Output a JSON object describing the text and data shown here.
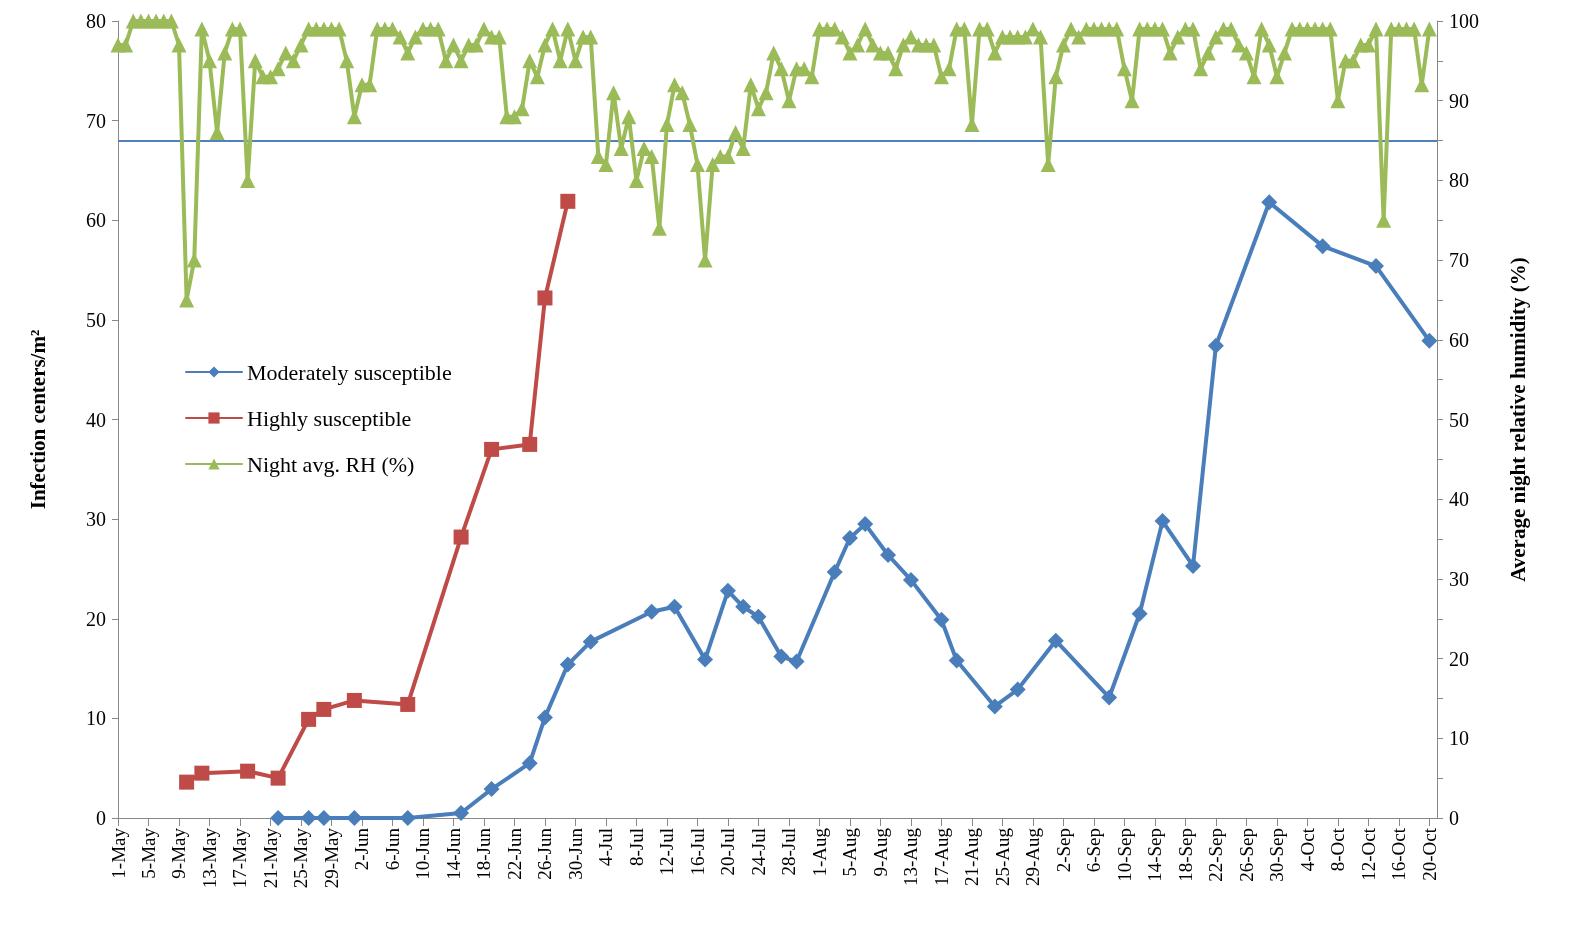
{
  "chart_data": {
    "type": "line",
    "xlabel": null,
    "ylabel": "Infection centers/m²",
    "y2label": "Average night relative humidity (%)",
    "x": [
      "--05-01",
      "--05-02",
      "--05-03",
      "--05-04",
      "--05-05",
      "--05-06",
      "--05-07",
      "--05-08",
      "--05-09",
      "--05-10",
      "--05-11",
      "--05-12",
      "--05-13",
      "--05-14",
      "--05-15",
      "--05-16",
      "--05-17",
      "--05-18",
      "--05-19",
      "--05-20",
      "--05-21",
      "--05-22",
      "--05-23",
      "--05-24",
      "--05-25",
      "--05-26",
      "--05-27",
      "--05-28",
      "--05-29",
      "--05-30",
      "--05-31",
      "--06-01",
      "--06-02",
      "--06-03",
      "--06-04",
      "--06-05",
      "--06-06",
      "--06-07",
      "--06-08",
      "--06-09",
      "--06-10",
      "--06-11",
      "--06-12",
      "--06-13",
      "--06-14",
      "--06-15",
      "--06-16",
      "--06-17",
      "--06-18",
      "--06-19",
      "--06-20",
      "--06-21",
      "--06-22",
      "--06-23",
      "--06-24",
      "--06-25",
      "--06-26",
      "--06-27",
      "--06-28",
      "--06-29",
      "--06-30",
      "--07-01",
      "--07-02",
      "--07-03",
      "--07-04",
      "--07-05",
      "--07-06",
      "--07-07",
      "--07-08",
      "--07-09",
      "--07-10",
      "--07-11",
      "--07-12",
      "--07-13",
      "--07-14",
      "--07-15",
      "--07-16",
      "--07-17",
      "--07-18",
      "--07-19",
      "--07-20",
      "--07-21",
      "--07-22",
      "--07-23",
      "--07-24",
      "--07-25",
      "--07-26",
      "--07-27",
      "--07-28",
      "--07-29",
      "--07-30",
      "--07-31",
      "--08-01",
      "--08-02",
      "--08-03",
      "--08-04",
      "--08-05",
      "--08-06",
      "--08-07",
      "--08-08",
      "--08-09",
      "--08-10",
      "--08-11",
      "--08-12",
      "--08-13",
      "--08-14",
      "--08-15",
      "--08-16",
      "--08-17",
      "--08-18",
      "--08-19",
      "--08-20",
      "--08-21",
      "--08-22",
      "--08-23",
      "--08-24",
      "--08-25",
      "--08-26",
      "--08-27",
      "--08-28",
      "--08-29",
      "--08-30",
      "--08-31",
      "--09-01",
      "--09-02",
      "--09-03",
      "--09-04",
      "--09-05",
      "--09-06",
      "--09-07",
      "--09-08",
      "--09-09",
      "--09-10",
      "--09-11",
      "--09-12",
      "--09-13",
      "--09-14",
      "--09-15",
      "--09-16",
      "--09-17",
      "--09-18",
      "--09-19",
      "--09-20",
      "--09-21",
      "--09-22",
      "--09-23",
      "--09-24",
      "--09-25",
      "--09-26",
      "--09-27",
      "--09-28",
      "--09-29",
      "--09-30",
      "--10-01",
      "--10-02",
      "--10-03",
      "--10-04",
      "--10-05",
      "--10-06",
      "--10-07",
      "--10-08",
      "--10-09",
      "--10-10",
      "--10-11",
      "--10-12",
      "--10-13",
      "--10-14",
      "--10-15",
      "--10-16",
      "--10-17",
      "--10-18",
      "--10-19",
      "--10-20"
    ],
    "series": [
      {
        "name": "Moderately susceptible",
        "color": "#4a7ebb",
        "marker": "diamond",
        "x": [
          "--05-22",
          "--05-26",
          "--05-28",
          "--06-01",
          "--06-08",
          "--06-15",
          "--06-19",
          "--06-24",
          "--06-26",
          "--06-29",
          "--07-02",
          "--07-10",
          "--07-13",
          "--07-17",
          "--07-20",
          "--07-22",
          "--07-24",
          "--07-27",
          "--07-29",
          "--08-03",
          "--08-05",
          "--08-07",
          "--08-10",
          "--08-13",
          "--08-17",
          "--08-19",
          "--08-24",
          "--08-27",
          "--09-01",
          "--09-08",
          "--09-12",
          "--09-15",
          "--09-19",
          "--09-22",
          "--09-29",
          "--10-06",
          "--10-13",
          "--10-20"
        ],
        "values": [
          0,
          0,
          0,
          0,
          0,
          0.5,
          2.9,
          5.5,
          10.1,
          15.4,
          17.7,
          20.7,
          21.2,
          15.9,
          22.8,
          21.2,
          20.2,
          16.2,
          15.7,
          24.7,
          28.1,
          29.5,
          26.4,
          23.9,
          19.9,
          15.8,
          11.2,
          12.9,
          17.8,
          12.1,
          20.5,
          29.8,
          25.3,
          47.4,
          61.8,
          57.4,
          55.4,
          47.9
        ]
      },
      {
        "name": "Highly susceptible",
        "color": "#be4b48",
        "marker": "square",
        "x": [
          "--05-10",
          "--05-12",
          "--05-18",
          "--05-22",
          "--05-26",
          "--05-28",
          "--06-01",
          "--06-08",
          "--06-15",
          "--06-19",
          "--06-24",
          "--06-26",
          "--06-29"
        ],
        "values": [
          3.6,
          4.5,
          4.7,
          4.0,
          9.9,
          10.9,
          11.8,
          11.4,
          28.2,
          37.0,
          37.5,
          52.2,
          61.9
        ]
      },
      {
        "name": "Night avg. RH (%)",
        "color": "#9bbb59",
        "marker": "triangle",
        "axis": "y2",
        "values": [
          97,
          97,
          100,
          100,
          100,
          100,
          100,
          100,
          97,
          65,
          70,
          99,
          95,
          86,
          96,
          99,
          99,
          80,
          95,
          93,
          93,
          94,
          96,
          95,
          97,
          99,
          99,
          99,
          99,
          99,
          95,
          88,
          92,
          92,
          99,
          99,
          99,
          98,
          96,
          98,
          99,
          99,
          99,
          95,
          97,
          95,
          97,
          97,
          99,
          98,
          98,
          88,
          88,
          89,
          95,
          93,
          97,
          99,
          95,
          99,
          95,
          98,
          98,
          83,
          82,
          91,
          84,
          88,
          80,
          84,
          83,
          74,
          87,
          92,
          91,
          87,
          82,
          70,
          82,
          83,
          83,
          86,
          84,
          92,
          89,
          91,
          96,
          94,
          90,
          94,
          94,
          93,
          99,
          99,
          99,
          98,
          96,
          97,
          99,
          97,
          96,
          96,
          94,
          97,
          98,
          97,
          97,
          97,
          93,
          94,
          99,
          99,
          87,
          99,
          99,
          96,
          98,
          98,
          98,
          98,
          99,
          98,
          82,
          93,
          97,
          99,
          98,
          99,
          99,
          99,
          99,
          99,
          94,
          90,
          99,
          99,
          99,
          99,
          96,
          98,
          99,
          99,
          94,
          96,
          98,
          99,
          99,
          97,
          96,
          93,
          99,
          97,
          93,
          96,
          99,
          99,
          99,
          99,
          99,
          99,
          90,
          95,
          95,
          97,
          97,
          99,
          75,
          99,
          99,
          99,
          99,
          92,
          99
        ]
      }
    ],
    "ref_lines": [
      {
        "axis": "y2",
        "value": 85,
        "color": "#4f81bd",
        "line_style": "solid"
      }
    ],
    "xlim": [
      "--05-01",
      "--10-21"
    ],
    "xticks": [
      {
        "value": "--05-01",
        "label": "1-May"
      },
      {
        "value": "--05-05",
        "label": "5-May"
      },
      {
        "value": "--05-09",
        "label": "9-May"
      },
      {
        "value": "--05-13",
        "label": "13-May"
      },
      {
        "value": "--05-17",
        "label": "17-May"
      },
      {
        "value": "--05-21",
        "label": "21-May"
      },
      {
        "value": "--05-25",
        "label": "25-May"
      },
      {
        "value": "--05-29",
        "label": "29-May"
      },
      {
        "value": "--06-02",
        "label": "2-Jun"
      },
      {
        "value": "--06-06",
        "label": "6-Jun"
      },
      {
        "value": "--06-10",
        "label": "10-Jun"
      },
      {
        "value": "--06-14",
        "label": "14-Jun"
      },
      {
        "value": "--06-18",
        "label": "18-Jun"
      },
      {
        "value": "--06-22",
        "label": "22-Jun"
      },
      {
        "value": "--06-26",
        "label": "26-Jun"
      },
      {
        "value": "--06-30",
        "label": "30-Jun"
      },
      {
        "value": "--07-04",
        "label": "4-Jul"
      },
      {
        "value": "--07-08",
        "label": "8-Jul"
      },
      {
        "value": "--07-12",
        "label": "12-Jul"
      },
      {
        "value": "--07-16",
        "label": "16-Jul"
      },
      {
        "value": "--07-20",
        "label": "20-Jul"
      },
      {
        "value": "--07-24",
        "label": "24-Jul"
      },
      {
        "value": "--07-28",
        "label": "28-Jul"
      },
      {
        "value": "--08-01",
        "label": "1-Aug"
      },
      {
        "value": "--08-05",
        "label": "5-Aug"
      },
      {
        "value": "--08-09",
        "label": "9-Aug"
      },
      {
        "value": "--08-13",
        "label": "13-Aug"
      },
      {
        "value": "--08-17",
        "label": "17-Aug"
      },
      {
        "value": "--08-21",
        "label": "21-Aug"
      },
      {
        "value": "--08-25",
        "label": "25-Aug"
      },
      {
        "value": "--08-29",
        "label": "29-Aug"
      },
      {
        "value": "--09-02",
        "label": "2-Sep"
      },
      {
        "value": "--09-06",
        "label": "6-Sep"
      },
      {
        "value": "--09-10",
        "label": "10-Sep"
      },
      {
        "value": "--09-14",
        "label": "14-Sep"
      },
      {
        "value": "--09-18",
        "label": "18-Sep"
      },
      {
        "value": "--09-22",
        "label": "22-Sep"
      },
      {
        "value": "--09-26",
        "label": "26-Sep"
      },
      {
        "value": "--09-30",
        "label": "30-Sep"
      },
      {
        "value": "--10-04",
        "label": "4-Oct"
      },
      {
        "value": "--10-08",
        "label": "8-Oct"
      },
      {
        "value": "--10-12",
        "label": "12-Oct"
      },
      {
        "value": "--10-16",
        "label": "16-Oct"
      },
      {
        "value": "--10-20",
        "label": "20-Oct"
      }
    ],
    "ylim": [
      0,
      80
    ],
    "yticks": [
      0,
      10,
      20,
      30,
      40,
      50,
      60,
      70,
      80
    ],
    "y2lim": [
      0,
      100
    ],
    "y2ticks": [
      0,
      {
        "value": 5,
        "label": null
      },
      10,
      {
        "value": 15,
        "label": null
      },
      20,
      {
        "value": 25,
        "label": null
      },
      30,
      {
        "value": 35,
        "label": null
      },
      40,
      {
        "value": 45,
        "label": null
      },
      50,
      {
        "value": 55,
        "label": null
      },
      60,
      {
        "value": 65,
        "label": null
      },
      70,
      {
        "value": 75,
        "label": null
      },
      80,
      {
        "value": 85,
        "label": null
      },
      90,
      {
        "value": 95,
        "label": null
      },
      100
    ],
    "grid": false,
    "legend": "center left",
    "line_style": "solid"
  }
}
